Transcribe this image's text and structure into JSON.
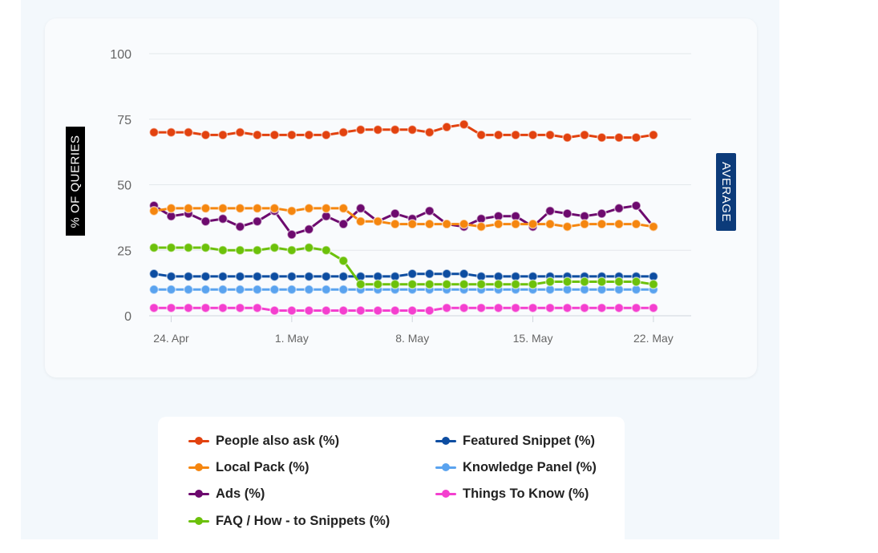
{
  "chart_data": {
    "type": "line",
    "ylabel": "% OF QUERIES",
    "side_label": "AVERAGE",
    "ylim": [
      0,
      100
    ],
    "yticks": [
      "0",
      "25",
      "50",
      "75",
      "100"
    ],
    "x_tick_labels": [
      {
        "index": 1,
        "label": "24. Apr"
      },
      {
        "index": 8,
        "label": "1. May"
      },
      {
        "index": 15,
        "label": "8. May"
      },
      {
        "index": 22,
        "label": "15. May"
      },
      {
        "index": 29,
        "label": "22. May"
      }
    ],
    "series": [
      {
        "name": "People also ask (%)",
        "color": "#e2420f",
        "values": [
          70,
          70,
          70,
          69,
          69,
          70,
          69,
          69,
          69,
          69,
          69,
          70,
          71,
          71,
          71,
          71,
          70,
          72,
          73,
          69,
          69,
          69,
          69,
          69,
          68,
          69,
          68,
          68,
          68,
          69
        ]
      },
      {
        "name": "Local Pack (%)",
        "color": "#f5860f",
        "values": [
          40,
          41,
          41,
          41,
          41,
          41,
          41,
          41,
          40,
          41,
          41,
          41,
          36,
          36,
          35,
          35,
          35,
          35,
          35,
          34,
          35,
          35,
          35,
          35,
          34,
          35,
          35,
          35,
          35,
          34
        ]
      },
      {
        "name": "Ads (%)",
        "color": "#6d0a6e",
        "values": [
          42,
          38,
          39,
          36,
          37,
          34,
          36,
          40,
          31,
          33,
          38,
          35,
          41,
          36,
          39,
          37,
          40,
          35,
          34,
          37,
          38,
          38,
          34,
          40,
          39,
          38,
          39,
          41,
          42,
          34
        ]
      },
      {
        "name": "FAQ / How - to Snippets (%)",
        "color": "#6cc10a",
        "values": [
          26,
          26,
          26,
          26,
          25,
          25,
          25,
          26,
          25,
          26,
          25,
          21,
          12,
          12,
          12,
          12,
          12,
          12,
          12,
          12,
          12,
          12,
          12,
          13,
          13,
          13,
          13,
          13,
          13,
          12
        ]
      },
      {
        "name": "Featured Snippet (%)",
        "color": "#0d4da1",
        "values": [
          16,
          15,
          15,
          15,
          15,
          15,
          15,
          15,
          15,
          15,
          15,
          15,
          15,
          15,
          15,
          16,
          16,
          16,
          16,
          15,
          15,
          15,
          15,
          15,
          15,
          15,
          15,
          15,
          15,
          15
        ]
      },
      {
        "name": "Knowledge Panel (%)",
        "color": "#5aa3ef",
        "values": [
          10,
          10,
          10,
          10,
          10,
          10,
          10,
          10,
          10,
          10,
          10,
          10,
          10,
          10,
          10,
          10,
          10,
          10,
          10,
          10,
          10,
          10,
          10,
          10,
          10,
          10,
          10,
          10,
          10,
          10
        ]
      },
      {
        "name": "Things To Know (%)",
        "color": "#f43fcf",
        "values": [
          3,
          3,
          3,
          3,
          3,
          3,
          3,
          2,
          2,
          2,
          2,
          2,
          2,
          2,
          2,
          2,
          2,
          3,
          3,
          3,
          3,
          3,
          3,
          3,
          3,
          3,
          3,
          3,
          3,
          3
        ]
      }
    ]
  }
}
